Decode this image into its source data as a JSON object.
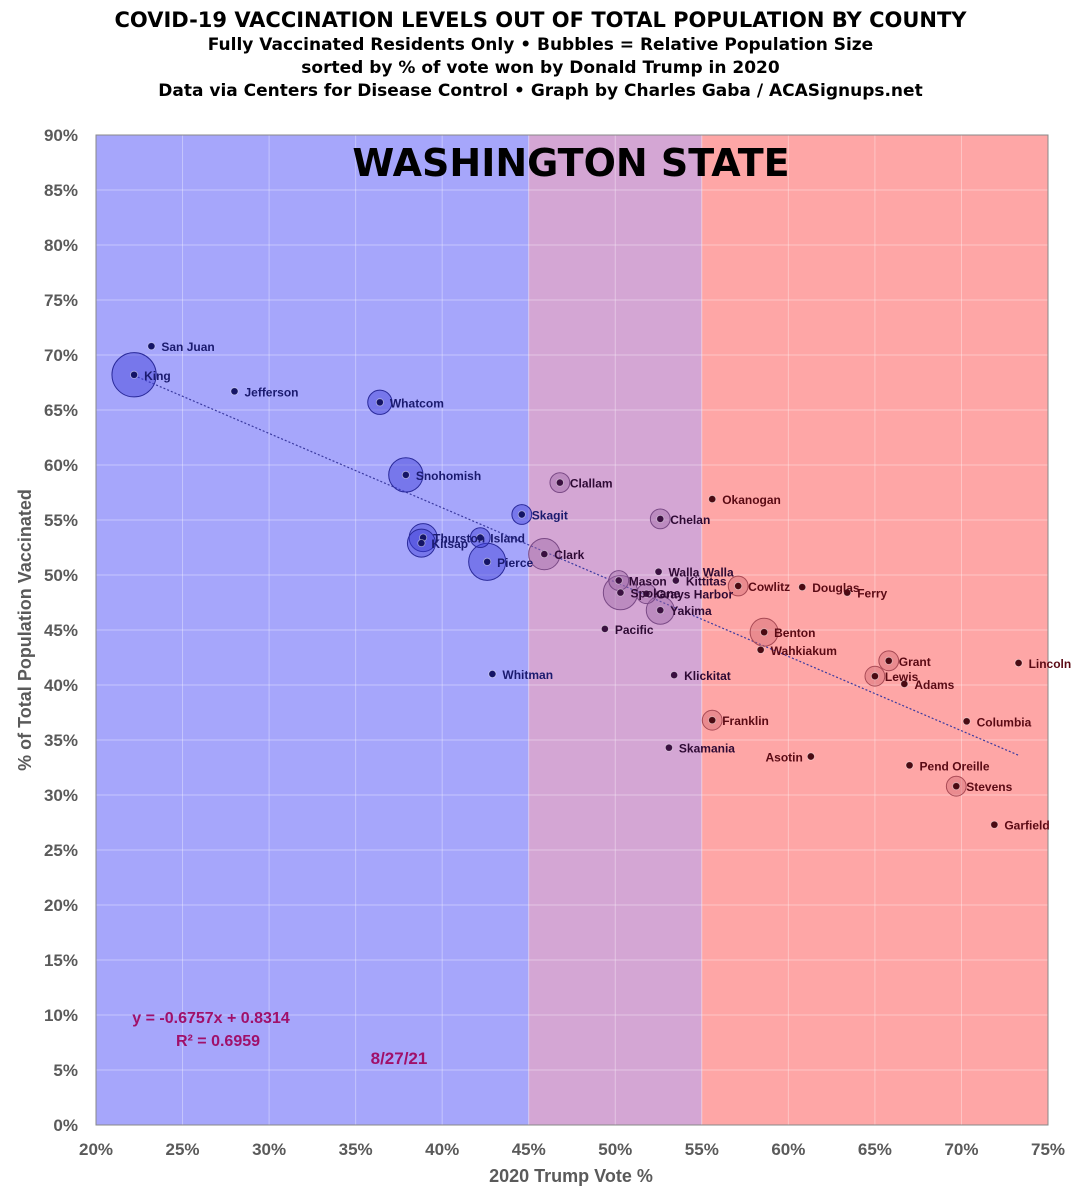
{
  "chart_data": {
    "type": "scatter",
    "title": "COVID-19 VACCINATION LEVELS OUT OF TOTAL POPULATION BY COUNTY",
    "subtitle_lines": [
      "Fully Vaccinated Residents Only • Bubbles = Relative Population Size",
      "sorted by % of vote won by Donald Trump in 2020",
      "Data via Centers for Disease Control • Graph by Charles Gaba / ACASignups.net"
    ],
    "state_label": "WASHINGTON STATE",
    "xlabel": "2020 Trump Vote %",
    "ylabel": "% of Total Population Vaccinated",
    "xlim": [
      0.2,
      0.75
    ],
    "ylim": [
      0,
      0.9
    ],
    "x_ticks": [
      0.2,
      0.25,
      0.3,
      0.35,
      0.4,
      0.45,
      0.5,
      0.55,
      0.6,
      0.65,
      0.7,
      0.75
    ],
    "x_tick_labels": [
      "20%",
      "25%",
      "30%",
      "35%",
      "40%",
      "45%",
      "50%",
      "55%",
      "60%",
      "65%",
      "70%",
      "75%"
    ],
    "y_ticks": [
      0,
      0.05,
      0.1,
      0.15,
      0.2,
      0.25,
      0.3,
      0.35,
      0.4,
      0.45,
      0.5,
      0.55,
      0.6,
      0.65,
      0.7,
      0.75,
      0.8,
      0.85,
      0.9
    ],
    "y_tick_labels": [
      "0%",
      "5%",
      "10%",
      "15%",
      "20%",
      "25%",
      "30%",
      "35%",
      "40%",
      "45%",
      "50%",
      "55%",
      "60%",
      "65%",
      "70%",
      "75%",
      "80%",
      "85%",
      "90%"
    ],
    "bands": [
      {
        "from": 0.2,
        "to": 0.45,
        "color": "#a6a6fb"
      },
      {
        "from": 0.45,
        "to": 0.55,
        "color": "#d4a6d4"
      },
      {
        "from": 0.55,
        "to": 0.75,
        "color": "#fea6a6"
      }
    ],
    "grid": true,
    "trendline": {
      "slope": -0.6757,
      "intercept": 0.8314,
      "x_range": [
        0.222,
        0.733
      ]
    },
    "equation_lines": [
      "y = -0.6757x + 0.8314",
      "R² = 0.6959"
    ],
    "date_label": "8/27/21",
    "colors": {
      "blue_text": "#1a1a6e",
      "red_text": "#5a0a14",
      "equation": "#a0106a"
    },
    "points": [
      {
        "name": "San Juan",
        "x": 0.232,
        "y": 0.708,
        "size": 1,
        "label_side": "right"
      },
      {
        "name": "King",
        "x": 0.222,
        "y": 0.682,
        "size": 10,
        "label_side": "right"
      },
      {
        "name": "Jefferson",
        "x": 0.28,
        "y": 0.667,
        "size": 1,
        "label_side": "right"
      },
      {
        "name": "Whatcom",
        "x": 0.364,
        "y": 0.657,
        "size": 3,
        "label_side": "right"
      },
      {
        "name": "Snohomish",
        "x": 0.379,
        "y": 0.591,
        "size": 6,
        "label_side": "right"
      },
      {
        "name": "Skagit",
        "x": 0.446,
        "y": 0.555,
        "size": 2,
        "label_side": "right"
      },
      {
        "name": "Thurston",
        "x": 0.389,
        "y": 0.534,
        "size": 4,
        "label_side": "right"
      },
      {
        "name": "Island",
        "x": 0.422,
        "y": 0.534,
        "size": 2,
        "label_side": "right"
      },
      {
        "name": "Kitsap",
        "x": 0.388,
        "y": 0.529,
        "size": 4,
        "label_side": "right"
      },
      {
        "name": "Pierce",
        "x": 0.426,
        "y": 0.512,
        "size": 7,
        "label_side": "right"
      },
      {
        "name": "Whitman",
        "x": 0.429,
        "y": 0.41,
        "size": 1,
        "label_side": "right"
      },
      {
        "name": "Clallam",
        "x": 0.468,
        "y": 0.584,
        "size": 2,
        "label_side": "right"
      },
      {
        "name": "Clark",
        "x": 0.459,
        "y": 0.519,
        "size": 5,
        "label_side": "right"
      },
      {
        "name": "Okanogan",
        "x": 0.556,
        "y": 0.569,
        "size": 1,
        "label_side": "right"
      },
      {
        "name": "Chelan",
        "x": 0.526,
        "y": 0.551,
        "size": 2,
        "label_side": "right"
      },
      {
        "name": "Walla Walla",
        "x": 0.525,
        "y": 0.503,
        "size": 1,
        "label_side": "right"
      },
      {
        "name": "Mason",
        "x": 0.502,
        "y": 0.495,
        "size": 2,
        "label_side": "right"
      },
      {
        "name": "Kittitas",
        "x": 0.535,
        "y": 0.495,
        "size": 1,
        "label_side": "right"
      },
      {
        "name": "Cowlitz",
        "x": 0.571,
        "y": 0.49,
        "size": 2,
        "label_side": "right"
      },
      {
        "name": "Douglas",
        "x": 0.608,
        "y": 0.489,
        "size": 1,
        "label_side": "right"
      },
      {
        "name": "Ferry",
        "x": 0.634,
        "y": 0.484,
        "size": 1,
        "label_side": "right"
      },
      {
        "name": "Spokane",
        "x": 0.503,
        "y": 0.484,
        "size": 6,
        "label_side": "right"
      },
      {
        "name": "Grays Harbor",
        "x": 0.518,
        "y": 0.483,
        "size": 2,
        "label_side": "right"
      },
      {
        "name": "Yakima",
        "x": 0.526,
        "y": 0.468,
        "size": 4,
        "label_side": "right"
      },
      {
        "name": "Pacific",
        "x": 0.494,
        "y": 0.451,
        "size": 1,
        "label_side": "right"
      },
      {
        "name": "Benton",
        "x": 0.586,
        "y": 0.448,
        "size": 4,
        "label_side": "right"
      },
      {
        "name": "Wahkiakum",
        "x": 0.584,
        "y": 0.432,
        "size": 1,
        "label_side": "right"
      },
      {
        "name": "Grant",
        "x": 0.658,
        "y": 0.422,
        "size": 2,
        "label_side": "right"
      },
      {
        "name": "Lincoln",
        "x": 0.733,
        "y": 0.42,
        "size": 1,
        "label_side": "right"
      },
      {
        "name": "Klickitat",
        "x": 0.534,
        "y": 0.409,
        "size": 1,
        "label_side": "right"
      },
      {
        "name": "Lewis",
        "x": 0.65,
        "y": 0.408,
        "size": 2,
        "label_side": "right"
      },
      {
        "name": "Adams",
        "x": 0.667,
        "y": 0.401,
        "size": 1,
        "label_side": "right"
      },
      {
        "name": "Franklin",
        "x": 0.556,
        "y": 0.368,
        "size": 2,
        "label_side": "right"
      },
      {
        "name": "Columbia",
        "x": 0.703,
        "y": 0.367,
        "size": 1,
        "label_side": "right"
      },
      {
        "name": "Skamania",
        "x": 0.531,
        "y": 0.343,
        "size": 1,
        "label_side": "right"
      },
      {
        "name": "Asotin",
        "x": 0.613,
        "y": 0.335,
        "size": 1,
        "label_side": "left"
      },
      {
        "name": "Pend Oreille",
        "x": 0.67,
        "y": 0.327,
        "size": 1,
        "label_side": "right"
      },
      {
        "name": "Stevens",
        "x": 0.697,
        "y": 0.308,
        "size": 2,
        "label_side": "right"
      },
      {
        "name": "Garfield",
        "x": 0.719,
        "y": 0.273,
        "size": 1,
        "label_side": "right"
      }
    ]
  }
}
